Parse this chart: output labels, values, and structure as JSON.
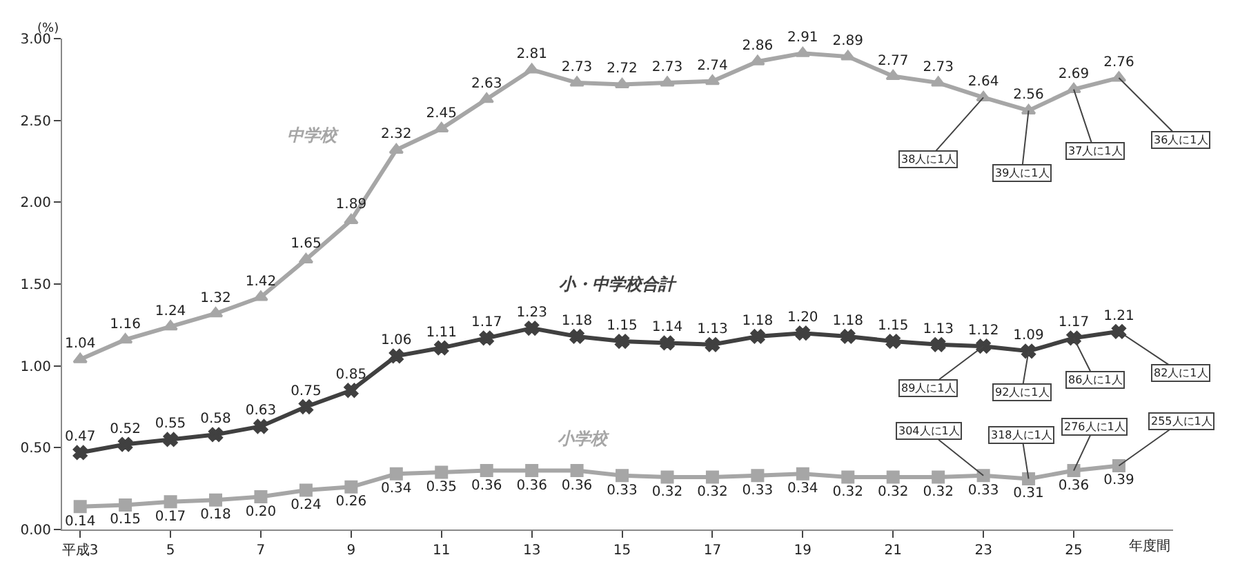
{
  "chart_data": {
    "type": "line",
    "ylabel": "(%)",
    "xlabel": "年度間",
    "x": [
      3,
      4,
      5,
      6,
      7,
      8,
      9,
      10,
      11,
      12,
      13,
      14,
      15,
      16,
      17,
      18,
      19,
      20,
      21,
      22,
      23,
      24,
      25,
      26
    ],
    "xlim": [
      2.6,
      27.2
    ],
    "xticks": [
      {
        "value": 3,
        "label": "平成3"
      },
      5,
      7,
      9,
      11,
      13,
      15,
      17,
      19,
      21,
      23,
      25
    ],
    "ylim": [
      0,
      3
    ],
    "yticks": [
      {
        "value": 0,
        "label": "0.00"
      },
      {
        "value": 0.5,
        "label": "0.50"
      },
      {
        "value": 1,
        "label": "1.00"
      },
      {
        "value": 1.5,
        "label": "1.50"
      },
      {
        "value": 2,
        "label": "2.00"
      },
      {
        "value": 2.5,
        "label": "2.50"
      },
      {
        "value": 3,
        "label": "3.00"
      }
    ],
    "legend": false,
    "series": [
      {
        "name": "中学校",
        "color": "#a6a6a6",
        "marker": "triangle",
        "values": [
          1.04,
          1.16,
          1.24,
          1.32,
          1.42,
          1.65,
          1.89,
          2.32,
          2.45,
          2.63,
          2.81,
          2.73,
          2.72,
          2.73,
          2.74,
          2.86,
          2.91,
          2.89,
          2.77,
          2.73,
          2.64,
          2.56,
          2.69,
          2.76
        ],
        "value_labels": [
          "1.04",
          "1.16",
          "1.24",
          "1.32",
          "1.42",
          "1.65",
          "1.89",
          "2.32",
          "2.45",
          "2.63",
          "2.81",
          "2.73",
          "2.72",
          "2.73",
          "2.74",
          "2.86",
          "2.91",
          "2.89",
          "2.77",
          "2.73",
          "2.64",
          "2.56",
          "2.69",
          "2.76"
        ]
      },
      {
        "name": "小・中学校合計",
        "color": "#404040",
        "marker": "cross",
        "values": [
          0.47,
          0.52,
          0.55,
          0.58,
          0.63,
          0.75,
          0.85,
          1.06,
          1.11,
          1.17,
          1.23,
          1.18,
          1.15,
          1.14,
          1.13,
          1.18,
          1.2,
          1.18,
          1.15,
          1.13,
          1.12,
          1.09,
          1.17,
          1.21
        ],
        "value_labels": [
          "0.47",
          "0.52",
          "0.55",
          "0.58",
          "0.63",
          "0.75",
          "0.85",
          "1.06",
          "1.11",
          "1.17",
          "1.23",
          "1.18",
          "1.15",
          "1.14",
          "1.13",
          "1.18",
          "1.20",
          "1.18",
          "1.15",
          "1.13",
          "1.12",
          "1.09",
          "1.17",
          "1.21"
        ]
      },
      {
        "name": "小学校",
        "color": "#a6a6a6",
        "marker": "square",
        "values": [
          0.14,
          0.15,
          0.17,
          0.18,
          0.2,
          0.24,
          0.26,
          0.34,
          0.35,
          0.36,
          0.36,
          0.36,
          0.33,
          0.32,
          0.32,
          0.33,
          0.34,
          0.32,
          0.32,
          0.32,
          0.33,
          0.31,
          0.36,
          0.39
        ],
        "value_labels": [
          "0.14",
          "0.15",
          "0.17",
          "0.18",
          "0.20",
          "0.24",
          "0.26",
          "0.34",
          "0.35",
          "0.36",
          "0.36",
          "0.36",
          "0.33",
          "0.32",
          "0.32",
          "0.33",
          "0.34",
          "0.32",
          "0.32",
          "0.32",
          "0.33",
          "0.31",
          "0.36",
          "0.39"
        ]
      }
    ],
    "annotations": [
      {
        "text": "38人に1人",
        "x": 23,
        "y": 2.64
      },
      {
        "text": "39人に1人",
        "x": 24,
        "y": 2.56
      },
      {
        "text": "37人に1人",
        "x": 25,
        "y": 2.69
      },
      {
        "text": "36人に1人",
        "x": 26,
        "y": 2.76
      },
      {
        "text": "89人に1人",
        "x": 23,
        "y": 1.12
      },
      {
        "text": "92人に1人",
        "x": 24,
        "y": 1.09
      },
      {
        "text": "86人に1人",
        "x": 25,
        "y": 1.17
      },
      {
        "text": "82人に1人",
        "x": 26,
        "y": 1.21
      },
      {
        "text": "304人に1人",
        "x": 23,
        "y": 0.33
      },
      {
        "text": "318人に1人",
        "x": 24,
        "y": 0.31
      },
      {
        "text": "276人に1人",
        "x": 25,
        "y": 0.36
      },
      {
        "text": "255人に1人",
        "x": 26,
        "y": 0.39
      }
    ]
  }
}
